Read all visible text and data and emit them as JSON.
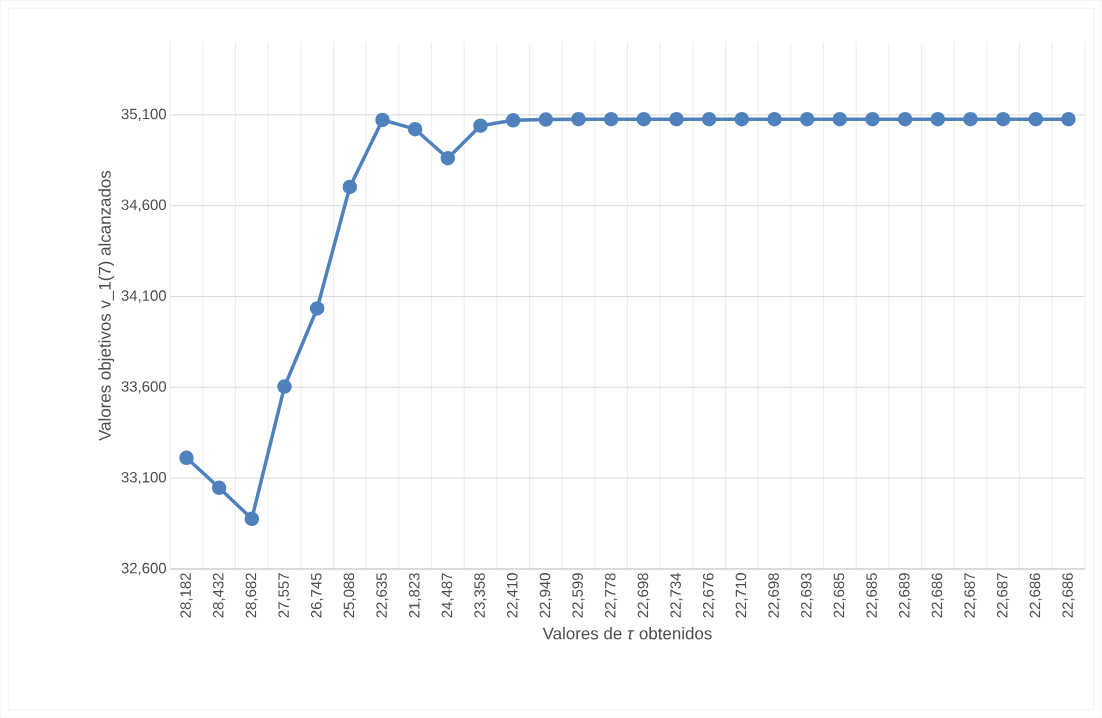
{
  "chart_data": {
    "type": "line",
    "xlabel": "Valores de *τ* obtenidos",
    "ylabel": "Valores objetivos v_1(7) alcanzados",
    "categories": [
      "28,182",
      "28,432",
      "28,682",
      "27,557",
      "26,745",
      "25,088",
      "22,635",
      "21,823",
      "24,487",
      "23,358",
      "22,410",
      "22,940",
      "22,599",
      "22,778",
      "22,698",
      "22,734",
      "22,676",
      "22,710",
      "22,698",
      "22,693",
      "22,685",
      "22,685",
      "22,689",
      "22,686",
      "22,687",
      "22,687",
      "22,686",
      "22,686"
    ],
    "values": [
      33212,
      33047,
      32876,
      33604,
      34034,
      34703,
      35072,
      35021,
      34861,
      35040,
      35070,
      35074,
      35076,
      35076,
      35076,
      35076,
      35076,
      35076,
      35076,
      35076,
      35076,
      35076,
      35076,
      35076,
      35076,
      35076,
      35076,
      35076
    ],
    "color": "#4f81bd",
    "ylim": [
      32600,
      35500
    ],
    "yticks": [
      {
        "value": 32600,
        "label": "32,600"
      },
      {
        "value": 33100,
        "label": "33,100"
      },
      {
        "value": 33600,
        "label": "33,600"
      },
      {
        "value": 34100,
        "label": "34,100"
      },
      {
        "value": 34600,
        "label": "34,600"
      },
      {
        "value": 35100,
        "label": "35,100"
      }
    ],
    "grid": true,
    "marker": "circle",
    "line_style": "solid"
  }
}
